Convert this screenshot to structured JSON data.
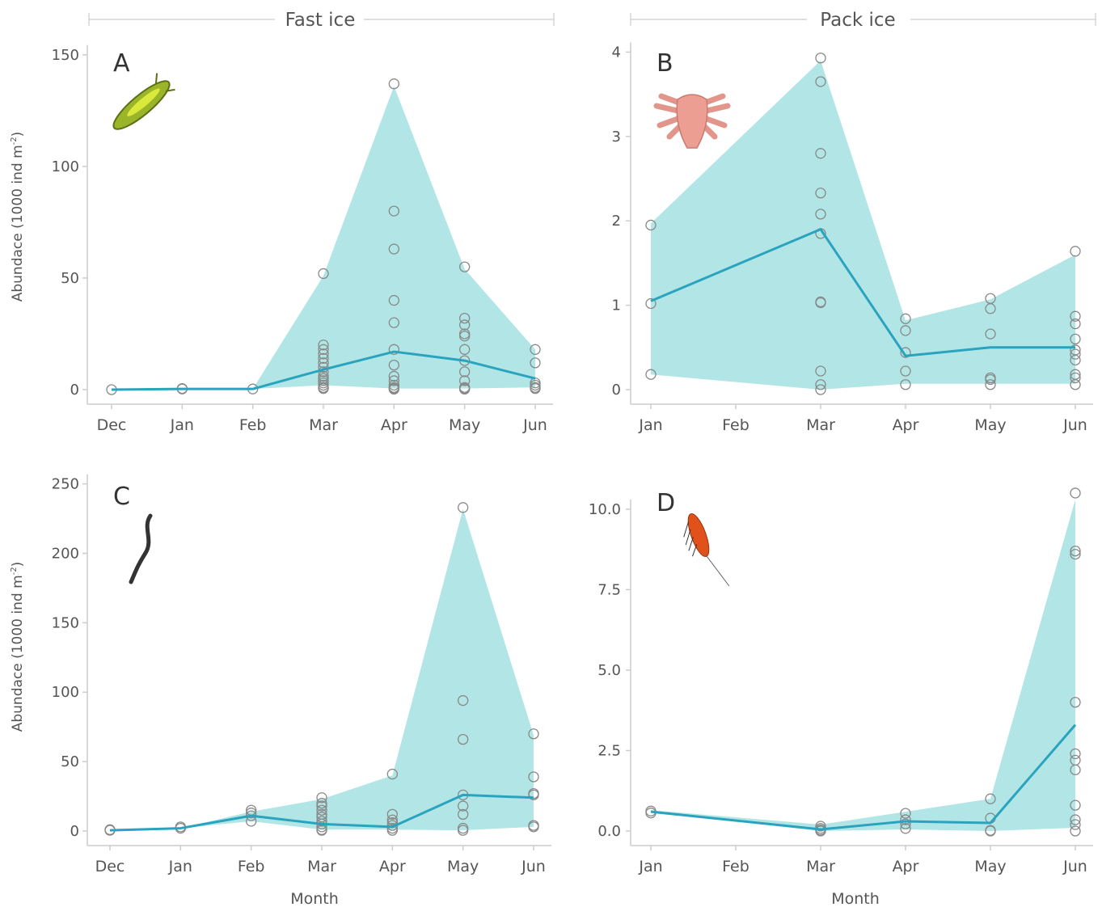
{
  "figure": {
    "groups": [
      {
        "id": "fast",
        "label": "Fast ice"
      },
      {
        "id": "pack",
        "label": "Pack ice"
      }
    ],
    "xlabel": "Month",
    "ylabel_main": "Abundace (1000 ind m",
    "ylabel_sup": "-2",
    "ylabel_tail": ")"
  },
  "colors": {
    "band": "#b2e6e6",
    "line": "#2aa3bf",
    "point": "#888888",
    "axis": "#cccccc",
    "text": "#555555"
  },
  "chart_data": [
    {
      "panel": "A",
      "group": "Fast ice",
      "type": "line",
      "icon": "flatworm-icon",
      "xcats": [
        "Dec",
        "Jan",
        "Feb",
        "Mar",
        "Apr",
        "May",
        "Jun"
      ],
      "ylim": [
        0,
        155
      ],
      "yticks": [
        0,
        50,
        100,
        150
      ],
      "ytick_labels": [
        "0",
        "50",
        "100",
        "150"
      ],
      "line": [
        0,
        0.3,
        0.3,
        9,
        17,
        13,
        5
      ],
      "band_lower": [
        0,
        0.3,
        0.3,
        2,
        0.5,
        0.5,
        1
      ],
      "band_upper": [
        0,
        0.3,
        0.3,
        51,
        136,
        54,
        18
      ],
      "points": [
        [
          0,
          [
            0
          ]
        ],
        [
          1,
          [
            0.3,
            0.5
          ]
        ],
        [
          2,
          [
            0.3
          ]
        ],
        [
          3,
          [
            52,
            20,
            18,
            16,
            14,
            12,
            10,
            8,
            6,
            5,
            4,
            3,
            2,
            1,
            0.5
          ]
        ],
        [
          4,
          [
            137,
            80,
            63,
            40,
            30,
            18,
            11,
            6,
            4,
            2,
            1,
            0.5,
            0.2
          ]
        ],
        [
          5,
          [
            55,
            32,
            29,
            25,
            24,
            18,
            13,
            8,
            4,
            1,
            0.5,
            0.2
          ]
        ],
        [
          6,
          [
            18,
            12,
            3,
            2,
            1,
            0.5
          ]
        ]
      ]
    },
    {
      "panel": "B",
      "group": "Pack ice",
      "type": "line",
      "icon": "mite-icon",
      "xcats": [
        "Jan",
        "Feb",
        "Mar",
        "Apr",
        "May",
        "Jun"
      ],
      "ylim": [
        0,
        4.1
      ],
      "yticks": [
        0,
        1,
        2,
        3,
        4
      ],
      "ytick_labels": [
        "0",
        "1",
        "2",
        "3",
        "4"
      ],
      "line_x": [
        0,
        2,
        3,
        4,
        5
      ],
      "line": [
        1.05,
        1.9,
        0.4,
        0.5,
        0.5
      ],
      "band_x": [
        0,
        2,
        3,
        4,
        5
      ],
      "band_lower": [
        0.18,
        0.0,
        0.07,
        0.07,
        0.07
      ],
      "band_upper": [
        1.97,
        3.9,
        0.82,
        1.07,
        1.6
      ],
      "points": [
        [
          0,
          [
            1.95,
            1.02,
            0.18
          ]
        ],
        [
          2,
          [
            3.93,
            3.65,
            2.8,
            2.33,
            2.08,
            1.85,
            1.04,
            1.03,
            0.22,
            0.06,
            0.0
          ]
        ],
        [
          3,
          [
            0.84,
            0.7,
            0.44,
            0.22,
            0.06
          ]
        ],
        [
          4,
          [
            1.08,
            0.96,
            0.66,
            0.14,
            0.12,
            0.06
          ]
        ],
        [
          5,
          [
            1.64,
            0.87,
            0.78,
            0.6,
            0.47,
            0.42,
            0.35,
            0.18,
            0.14,
            0.06
          ]
        ]
      ]
    },
    {
      "panel": "C",
      "group": "Fast ice",
      "type": "line",
      "icon": "nematode-icon",
      "xcats": [
        "Dec",
        "Jan",
        "Feb",
        "Mar",
        "Apr",
        "May",
        "Jun"
      ],
      "ylim": [
        0,
        255
      ],
      "yticks": [
        0,
        50,
        100,
        150,
        200,
        250
      ],
      "ytick_labels": [
        "0",
        "50",
        "100",
        "150",
        "200",
        "250"
      ],
      "line": [
        0.5,
        2,
        11,
        5,
        3,
        26,
        24
      ],
      "band_lower": [
        0.5,
        2,
        7,
        1,
        1,
        0.5,
        3
      ],
      "band_upper": [
        0.5,
        2,
        14,
        23,
        40,
        232,
        69
      ],
      "points": [
        [
          0,
          [
            0.5,
            1
          ]
        ],
        [
          1,
          [
            2,
            3
          ]
        ],
        [
          2,
          [
            15,
            13,
            11,
            7
          ]
        ],
        [
          3,
          [
            24,
            20,
            18,
            15,
            12,
            10,
            7,
            5,
            3,
            1,
            0.5
          ]
        ],
        [
          4,
          [
            41,
            12,
            8,
            6,
            4,
            2,
            0.5
          ]
        ],
        [
          5,
          [
            233,
            94,
            66,
            26,
            18,
            12,
            2,
            0.5
          ]
        ],
        [
          6,
          [
            70,
            39,
            27,
            26,
            4,
            3
          ]
        ]
      ]
    },
    {
      "panel": "D",
      "group": "Pack ice",
      "type": "line",
      "icon": "copepod-icon",
      "xcats": [
        "Jan",
        "Feb",
        "Mar",
        "Apr",
        "May",
        "Jun"
      ],
      "ylim": [
        0,
        10.8
      ],
      "yticks": [
        0,
        2.5,
        5,
        7.5,
        10
      ],
      "ytick_labels": [
        "0.0",
        "2.5",
        "5.0",
        "7.5",
        "10.0"
      ],
      "line_x": [
        0,
        2,
        3,
        4,
        5
      ],
      "line": [
        0.6,
        0.05,
        0.3,
        0.25,
        3.3
      ],
      "band_x": [
        0,
        2,
        3,
        4,
        5
      ],
      "band_lower": [
        0.6,
        0.0,
        0.05,
        0.0,
        0.1
      ],
      "band_upper": [
        0.65,
        0.2,
        0.6,
        1.0,
        10.3
      ],
      "points": [
        [
          0,
          [
            0.62,
            0.56
          ]
        ],
        [
          2,
          [
            0.15,
            0.08,
            0.03,
            0.0
          ]
        ],
        [
          3,
          [
            0.55,
            0.35,
            0.22,
            0.08
          ]
        ],
        [
          4,
          [
            1.0,
            0.4,
            0.02,
            0.0
          ]
        ],
        [
          5,
          [
            10.5,
            8.7,
            8.6,
            4.0,
            2.4,
            2.2,
            1.9,
            0.8,
            0.35,
            0.2,
            0.0
          ]
        ]
      ]
    }
  ]
}
